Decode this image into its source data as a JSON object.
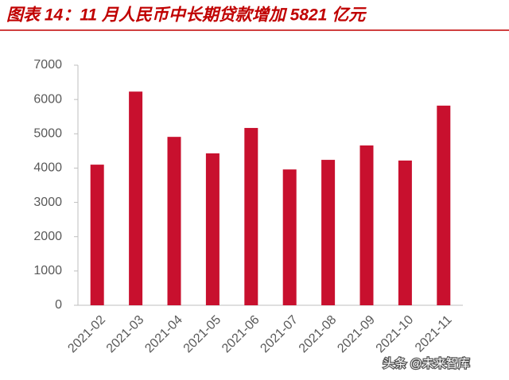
{
  "chart_data": {
    "type": "bar",
    "title": "图表 14：11 月人民币中长期贷款增加 5821 亿元",
    "categories": [
      "2021-02",
      "2021-03",
      "2021-04",
      "2021-05",
      "2021-06",
      "2021-07",
      "2021-08",
      "2021-09",
      "2021-10",
      "2021-11"
    ],
    "values": [
      4100,
      6230,
      4910,
      4430,
      5170,
      3960,
      4240,
      4660,
      4220,
      5821
    ],
    "color": "#c8102e",
    "ylim": [
      0,
      7000
    ],
    "yticks": [
      0,
      1000,
      2000,
      3000,
      4000,
      5000,
      6000,
      7000
    ],
    "grid": false,
    "annotations": [
      "头条 @未来智库"
    ]
  }
}
